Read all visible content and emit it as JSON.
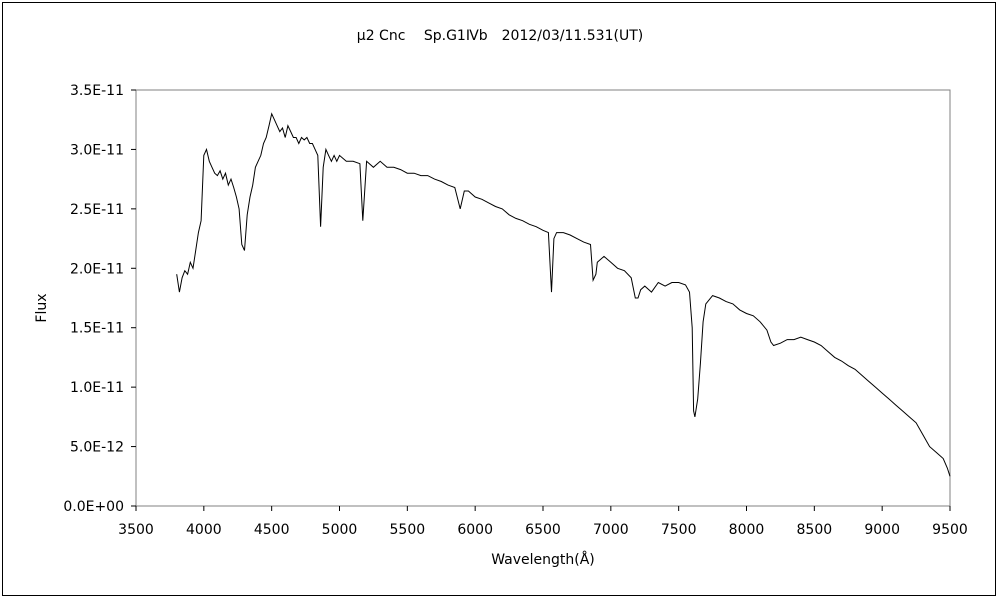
{
  "chart_data": {
    "type": "line",
    "title": "μ2 Cnc　 Sp.G1Ⅳb　2012/03/11.531(UT)",
    "xlabel": "Wavelength(Å)",
    "ylabel": "Flux",
    "xlim": [
      3500,
      9500
    ],
    "ylim": [
      0,
      3.5e-11
    ],
    "x_ticks": [
      3500,
      4000,
      4500,
      5000,
      5500,
      6000,
      6500,
      7000,
      7500,
      8000,
      8500,
      9000,
      9500
    ],
    "y_ticks": [
      0,
      5e-12,
      1e-11,
      1.5e-11,
      2e-11,
      2.5e-11,
      3e-11,
      3.5e-11
    ],
    "x_tick_labels": [
      "3500",
      "4000",
      "4500",
      "5000",
      "5500",
      "6000",
      "6500",
      "7000",
      "7500",
      "8000",
      "8500",
      "9000",
      "9500"
    ],
    "y_tick_labels": [
      "0.0E+00",
      "5.0E-12",
      "1.0E-11",
      "1.5E-11",
      "2.0E-11",
      "2.5E-11",
      "3.0E-11",
      "3.5E-11"
    ],
    "grid": false,
    "legend": "none",
    "line_color": "#000000",
    "series": [
      {
        "x": [
          3800,
          3820,
          3840,
          3860,
          3880,
          3900,
          3920,
          3940,
          3960,
          3980,
          4000,
          4020,
          4040,
          4060,
          4080,
          4100,
          4120,
          4140,
          4160,
          4180,
          4200,
          4220,
          4240,
          4260,
          4280,
          4300,
          4320,
          4340,
          4360,
          4380,
          4400,
          4420,
          4440,
          4460,
          4480,
          4500,
          4520,
          4540,
          4560,
          4580,
          4600,
          4620,
          4640,
          4660,
          4680,
          4700,
          4720,
          4740,
          4760,
          4780,
          4800,
          4820,
          4840,
          4861,
          4880,
          4900,
          4920,
          4940,
          4960,
          4980,
          5000,
          5050,
          5100,
          5150,
          5172,
          5200,
          5250,
          5300,
          5350,
          5400,
          5450,
          5500,
          5550,
          5600,
          5650,
          5700,
          5750,
          5800,
          5850,
          5890,
          5920,
          5950,
          6000,
          6050,
          6100,
          6150,
          6200,
          6250,
          6300,
          6350,
          6400,
          6450,
          6500,
          6540,
          6563,
          6580,
          6600,
          6650,
          6700,
          6750,
          6800,
          6850,
          6869,
          6890,
          6900,
          6950,
          7000,
          7050,
          7100,
          7150,
          7180,
          7200,
          7220,
          7250,
          7300,
          7350,
          7400,
          7450,
          7500,
          7550,
          7580,
          7600,
          7610,
          7620,
          7640,
          7660,
          7680,
          7700,
          7750,
          7800,
          7850,
          7900,
          7950,
          8000,
          8050,
          8100,
          8150,
          8180,
          8200,
          8250,
          8300,
          8350,
          8400,
          8450,
          8500,
          8550,
          8600,
          8650,
          8700,
          8750,
          8800,
          8850,
          8900,
          8950,
          9000,
          9050,
          9100,
          9150,
          9200,
          9250,
          9300,
          9350,
          9400,
          9450,
          9480,
          9500
        ],
        "y": [
          1.95e-11,
          1.8e-11,
          1.92e-11,
          1.98e-11,
          1.95e-11,
          2.05e-11,
          2e-11,
          2.15e-11,
          2.3e-11,
          2.4e-11,
          2.95e-11,
          3e-11,
          2.9e-11,
          2.85e-11,
          2.8e-11,
          2.78e-11,
          2.82e-11,
          2.75e-11,
          2.8e-11,
          2.7e-11,
          2.75e-11,
          2.68e-11,
          2.6e-11,
          2.5e-11,
          2.2e-11,
          2.15e-11,
          2.45e-11,
          2.6e-11,
          2.7e-11,
          2.85e-11,
          2.9e-11,
          2.95e-11,
          3.05e-11,
          3.1e-11,
          3.2e-11,
          3.3e-11,
          3.25e-11,
          3.2e-11,
          3.15e-11,
          3.18e-11,
          3.1e-11,
          3.2e-11,
          3.15e-11,
          3.1e-11,
          3.1e-11,
          3.05e-11,
          3.1e-11,
          3.08e-11,
          3.1e-11,
          3.05e-11,
          3.05e-11,
          3e-11,
          2.95e-11,
          2.35e-11,
          2.85e-11,
          3e-11,
          2.95e-11,
          2.9e-11,
          2.95e-11,
          2.9e-11,
          2.95e-11,
          2.9e-11,
          2.9e-11,
          2.88e-11,
          2.4e-11,
          2.9e-11,
          2.85e-11,
          2.9e-11,
          2.85e-11,
          2.85e-11,
          2.83e-11,
          2.8e-11,
          2.8e-11,
          2.78e-11,
          2.78e-11,
          2.75e-11,
          2.73e-11,
          2.7e-11,
          2.68e-11,
          2.5e-11,
          2.65e-11,
          2.65e-11,
          2.6e-11,
          2.58e-11,
          2.55e-11,
          2.52e-11,
          2.5e-11,
          2.45e-11,
          2.42e-11,
          2.4e-11,
          2.37e-11,
          2.35e-11,
          2.32e-11,
          2.3e-11,
          1.8e-11,
          2.25e-11,
          2.3e-11,
          2.3e-11,
          2.28e-11,
          2.25e-11,
          2.22e-11,
          2.2e-11,
          1.9e-11,
          1.95e-11,
          2.05e-11,
          2.1e-11,
          2.05e-11,
          2e-11,
          1.98e-11,
          1.92e-11,
          1.75e-11,
          1.75e-11,
          1.82e-11,
          1.85e-11,
          1.8e-11,
          1.88e-11,
          1.85e-11,
          1.88e-11,
          1.88e-11,
          1.86e-11,
          1.8e-11,
          1.5e-11,
          8e-12,
          7.5e-12,
          9e-12,
          1.2e-11,
          1.55e-11,
          1.7e-11,
          1.77e-11,
          1.75e-11,
          1.72e-11,
          1.7e-11,
          1.65e-11,
          1.62e-11,
          1.6e-11,
          1.55e-11,
          1.48e-11,
          1.38e-11,
          1.35e-11,
          1.37e-11,
          1.4e-11,
          1.4e-11,
          1.42e-11,
          1.4e-11,
          1.38e-11,
          1.35e-11,
          1.3e-11,
          1.25e-11,
          1.22e-11,
          1.18e-11,
          1.15e-11,
          1.1e-11,
          1.05e-11,
          1e-11,
          9.5e-12,
          9e-12,
          8.5e-12,
          8e-12,
          7.5e-12,
          7e-12,
          6e-12,
          5e-12,
          4.5e-12,
          4e-12,
          3.2e-12,
          2.5e-12
        ]
      }
    ]
  }
}
